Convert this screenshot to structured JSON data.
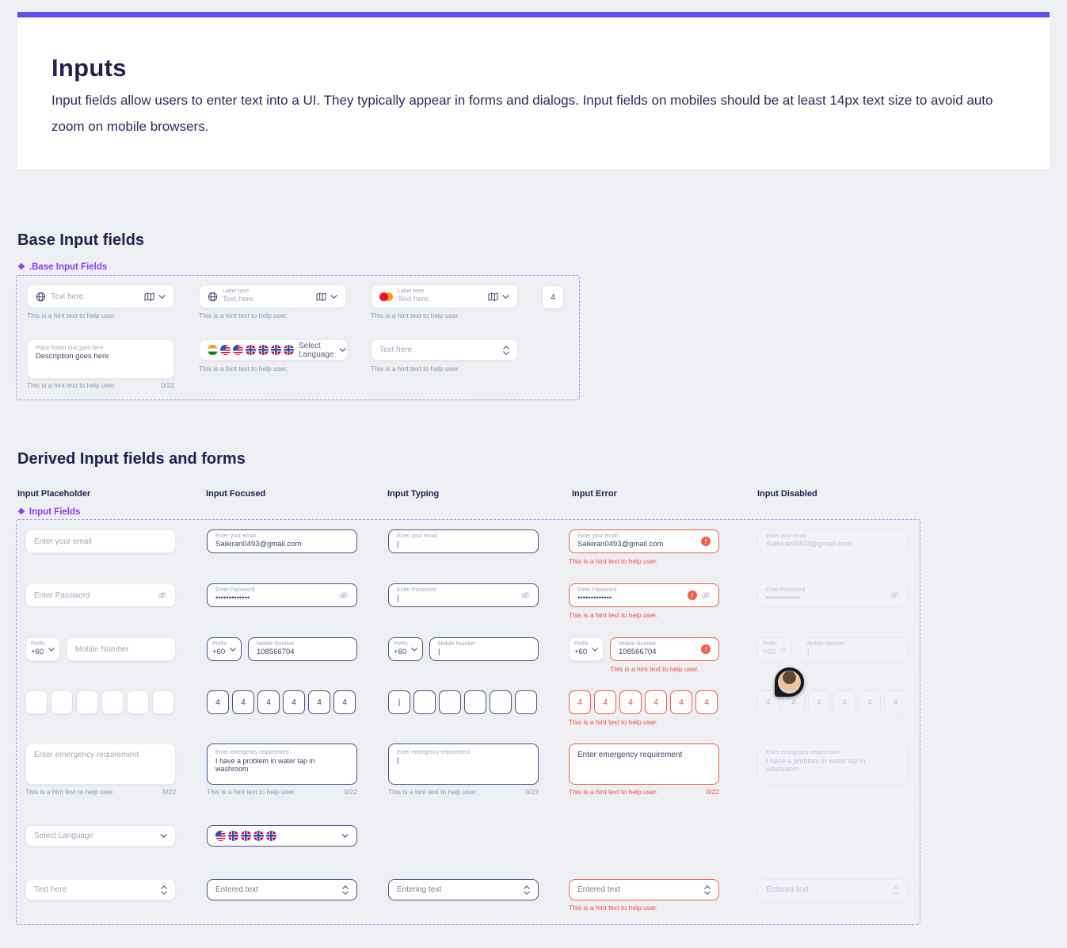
{
  "colors": {
    "accent_bar": "#5B4FF0",
    "component_purple": "#8B3DF5",
    "error": "#EE5F49",
    "error_text": "#F4503A",
    "focus_border": "#4A527F",
    "mastercard_red": "#EB001B",
    "mastercard_orange": "#F79E1B"
  },
  "icons": {
    "component": "❖",
    "cursor": "|"
  },
  "header": {
    "title": "Inputs",
    "description": "Input fields allow users to enter text into a UI. They typically appear in forms and dialogs. Input fields on mobiles should be at least 14px text size to avoid auto zoom on mobile browsers."
  },
  "strings": {
    "hint": "This is a hint text to help user.",
    "counter": "0/22"
  },
  "base": {
    "heading": "Base Input fields",
    "component_label": ".Base Input Fields",
    "text_placeholder": "Text here",
    "field_label": "Label here",
    "otp_digit": "4",
    "textarea_label": "Place holder text goes here",
    "textarea_value": "Description goes here",
    "language_placeholder": "Select Language",
    "language_flags": [
      "india",
      "us",
      "us",
      "nordic",
      "nordic",
      "nordic",
      "nordic"
    ]
  },
  "derived": {
    "heading": "Derived Input fields and forms",
    "component_label": "Input Fields",
    "columns": [
      "Input Placeholder",
      "Input Focused",
      "Input Typing",
      "Input Error",
      "Input Disabled"
    ],
    "email": {
      "placeholder": "Enter your email",
      "value": "Saikiran0493@gmail.com"
    },
    "password": {
      "placeholder": "Enter Password",
      "masked": "•••••••••••••"
    },
    "mobile": {
      "prefix_label": "Prefix",
      "prefix_value": "+60",
      "placeholder": "Mobile Number",
      "value": "108566704"
    },
    "otp": {
      "digit": "4"
    },
    "emergency": {
      "placeholder": "Enter emergency requirement",
      "value": "I have a problem in water tap in washroom"
    },
    "language": {
      "placeholder": "Select Language",
      "flags": [
        "us",
        "nordic",
        "nordic",
        "nordic",
        "nordic"
      ]
    },
    "stepper": {
      "placeholder": "Text here",
      "entered": "Entered text",
      "typing": "Entering text"
    }
  }
}
